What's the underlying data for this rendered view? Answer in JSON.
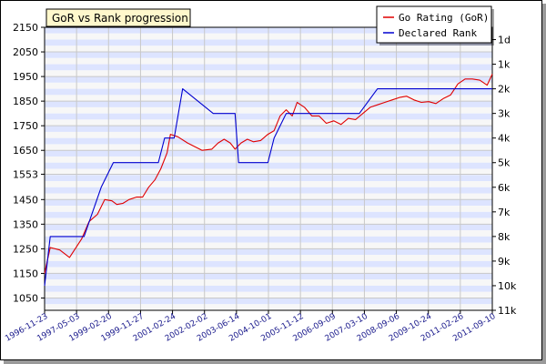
{
  "chart_data": {
    "type": "line",
    "title": "GoR vs Rank progression",
    "legend_position": "top-right",
    "grid": true,
    "y_left": {
      "label": "",
      "ticks": [
        1050,
        1150,
        1250,
        1350,
        1450,
        1553,
        1650,
        1750,
        1850,
        1950,
        2050,
        2150
      ],
      "tick_labels": [
        "1050",
        "1150",
        "1250",
        "1350",
        "1450",
        "1553",
        "1650",
        "1750",
        "1850",
        "1950",
        "2050",
        "2150"
      ],
      "range": [
        1000,
        2150
      ]
    },
    "y_right": {
      "label": "",
      "tick_labels": [
        "1d",
        "1k",
        "2k",
        "3k",
        "4k",
        "5k",
        "6k",
        "7k",
        "8k",
        "9k",
        "10k",
        "11k"
      ],
      "range_note": "1d at 2100, each step down 100"
    },
    "x": {
      "label": "",
      "range": [
        "1996-11-23",
        "2012-03-20"
      ],
      "tick_labels": [
        "1996-11-23",
        "1997-05-03",
        "1999-02-20",
        "1999-11-27",
        "2001-02-24",
        "2002-02-02",
        "2003-06-14",
        "2004-10-01",
        "2005-11-12",
        "2006-09-09",
        "2007-03-10",
        "2008-09-06",
        "2009-10-24",
        "2011-02-26",
        "2011-09-10"
      ]
    },
    "series": [
      {
        "name": "Go Rating (GoR)",
        "color": "#e00000",
        "x": [
          "1996-11-23",
          "1997-02-01",
          "1997-06-01",
          "1997-10-01",
          "1998-03-01",
          "1998-06-01",
          "1998-09-15",
          "1998-12-15",
          "1999-03-15",
          "1999-05-15",
          "1999-08-01",
          "1999-10-15",
          "2000-01-15",
          "2000-04-01",
          "2000-06-15",
          "2000-09-01",
          "2000-11-15",
          "2001-02-01",
          "2001-03-15",
          "2001-06-15",
          "2001-10-15",
          "2002-01-15",
          "2002-04-15",
          "2002-08-15",
          "2002-11-01",
          "2003-01-15",
          "2003-04-01",
          "2003-06-01",
          "2003-08-15",
          "2003-11-01",
          "2004-01-15",
          "2004-04-15",
          "2004-07-15",
          "2004-10-01",
          "2004-12-15",
          "2005-03-01",
          "2005-05-15",
          "2005-07-15",
          "2005-10-15",
          "2006-01-15",
          "2006-04-15",
          "2006-07-15",
          "2006-10-15",
          "2007-01-15",
          "2007-04-15",
          "2007-07-15",
          "2007-10-15",
          "2008-01-15",
          "2008-04-15",
          "2008-07-15",
          "2008-10-15",
          "2009-01-15",
          "2009-04-15",
          "2009-07-15",
          "2009-10-15",
          "2010-01-15",
          "2010-04-15",
          "2010-07-15",
          "2010-10-15",
          "2011-01-15",
          "2011-04-15",
          "2011-07-15",
          "2011-10-15",
          "2012-01-15",
          "2012-03-20"
        ],
        "values": [
          1150,
          1255,
          1245,
          1215,
          1290,
          1360,
          1390,
          1450,
          1445,
          1430,
          1435,
          1450,
          1460,
          1460,
          1500,
          1530,
          1575,
          1640,
          1715,
          1705,
          1680,
          1665,
          1650,
          1655,
          1680,
          1695,
          1680,
          1655,
          1680,
          1695,
          1685,
          1690,
          1715,
          1730,
          1790,
          1815,
          1790,
          1845,
          1825,
          1790,
          1790,
          1760,
          1770,
          1755,
          1780,
          1775,
          1800,
          1825,
          1835,
          1845,
          1855,
          1865,
          1870,
          1855,
          1845,
          1848,
          1840,
          1860,
          1875,
          1920,
          1940,
          1940,
          1935,
          1915,
          1960
        ]
      },
      {
        "name": "Declared Rank",
        "color": "#0000d0",
        "x": [
          "1996-11-23",
          "1997-02-01",
          "1998-04-01",
          "1998-11-01",
          "1999-04-01",
          "2000-10-15",
          "2001-01-01",
          "2001-05-01",
          "2001-08-15",
          "2002-09-01",
          "2003-06-01",
          "2003-07-15",
          "2004-07-15",
          "2004-10-01",
          "2005-03-01",
          "2005-06-01",
          "2006-07-15",
          "2007-09-01",
          "2008-04-15",
          "2012-03-20"
        ],
        "values": [
          1100,
          1300,
          1300,
          1500,
          1600,
          1600,
          1700,
          1700,
          1900,
          1800,
          1800,
          1600,
          1600,
          1700,
          1800,
          1800,
          1800,
          1800,
          1900,
          1900
        ]
      }
    ]
  }
}
